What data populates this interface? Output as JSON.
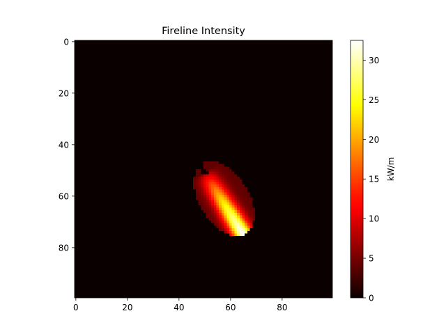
{
  "chart_data": {
    "type": "heatmap",
    "title": "Fireline Intensity",
    "xlabel": "",
    "ylabel": "",
    "grid_shape": [
      100,
      100
    ],
    "x_ticks": [
      0,
      20,
      40,
      60,
      80
    ],
    "y_ticks": [
      0,
      20,
      40,
      60,
      80
    ],
    "xlim": [
      -0.5,
      99.5
    ],
    "ylim": [
      99.5,
      -0.5
    ],
    "y_axis_inverted": true,
    "grid": false,
    "background_value": 0,
    "colormap": "hot",
    "colorbar": {
      "label": "kW/m",
      "range": [
        0,
        32.5
      ],
      "ticks": [
        0,
        5,
        10,
        15,
        20,
        25,
        30
      ],
      "placement": "right"
    },
    "burned_region": {
      "shape": "ellipse",
      "center": [
        57.5,
        61.0
      ],
      "semi_axis_major": 16.0,
      "semi_axis_minor": 9.5,
      "major_axis_direction_deg": 58,
      "ignition_point": [
        50,
        51
      ],
      "head_point": [
        68,
        72
      ],
      "intensity_at_ignition": 0,
      "intensity_along_spread_axis_max": 32.5,
      "intensity_at_flanks": 4
    }
  }
}
